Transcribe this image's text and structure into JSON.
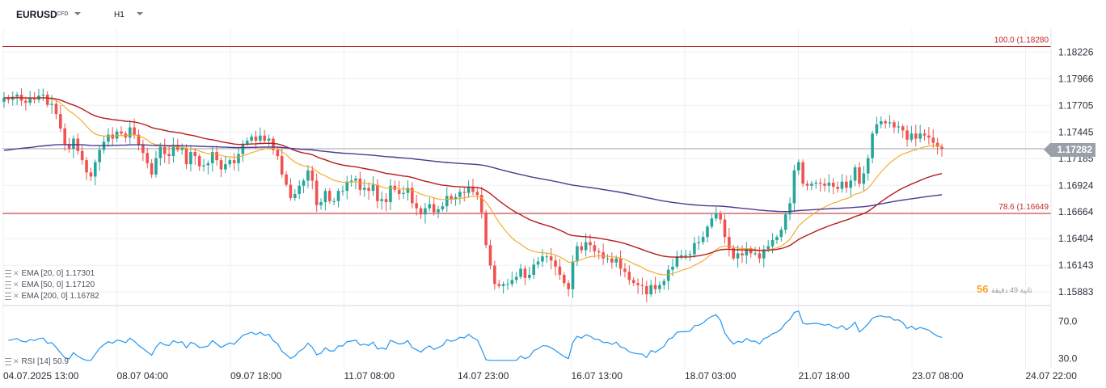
{
  "header": {
    "symbol": "EURUSD",
    "symbol_type": "CFD",
    "timeframe": "H1"
  },
  "indicators": {
    "ema20": "EMA [20, 0]  1.17301",
    "ema50": "EMA [50, 0]  1.17120",
    "ema200": "EMA [200, 0]  1.16782",
    "rsi": "RSI [14]  50.9"
  },
  "counter": {
    "first": "56",
    "label": "ثانية  49  دقيقة"
  },
  "colors": {
    "up": "#26a69a",
    "down": "#ef5350",
    "ema20": "#f5a623",
    "ema50": "#b71c1c",
    "ema200": "#4a3b8f",
    "rsi": "#2196f3",
    "fib": "#c62828",
    "current": "#9aa0aa"
  },
  "chart_data": {
    "type": "candlestick",
    "title": "EURUSD H1",
    "ylim": [
      1.1575,
      1.1845
    ],
    "y_ticks": [
      1.18226,
      1.17966,
      1.17705,
      1.17445,
      1.17185,
      1.16924,
      1.16664,
      1.16404,
      1.16143,
      1.15883
    ],
    "y_tick_labels": [
      "1.18226",
      "1.17966",
      "1.17705",
      "1.17445",
      "1.17185",
      "1.16924",
      "1.16664",
      "1.16404",
      "1.16143",
      "1.15883"
    ],
    "x_labels": [
      "04.07.2025  13:00",
      "08.07  04:00",
      "09.07  18:00",
      "11.07  08:00",
      "14.07  23:00",
      "16.07  13:00",
      "18.07  03:00",
      "21.07  18:00",
      "23.07  08:00",
      "24.07  22:00"
    ],
    "current_price": 1.17282,
    "current_price_label": "1.17282",
    "fib_levels": [
      {
        "label": "100.0 (1.18280",
        "value": 1.1828
      },
      {
        "label": "78.6 (1.16649",
        "value": 1.16649
      }
    ],
    "close": [
      1.1778,
      1.1776,
      1.1779,
      1.1781,
      1.1775,
      1.1773,
      1.1778,
      1.1776,
      1.178,
      1.1781,
      1.1771,
      1.1772,
      1.1762,
      1.1748,
      1.1732,
      1.1728,
      1.1738,
      1.1726,
      1.1717,
      1.1705,
      1.1701,
      1.1715,
      1.1727,
      1.1735,
      1.1742,
      1.1738,
      1.1745,
      1.1743,
      1.1739,
      1.1749,
      1.1742,
      1.1732,
      1.1724,
      1.1714,
      1.1703,
      1.1719,
      1.173,
      1.1723,
      1.1721,
      1.1732,
      1.1727,
      1.1729,
      1.1713,
      1.1725,
      1.1721,
      1.1711,
      1.1712,
      1.1714,
      1.1725,
      1.1717,
      1.1708,
      1.1713,
      1.1717,
      1.1714,
      1.1723,
      1.1733,
      1.1736,
      1.174,
      1.1736,
      1.1741,
      1.1736,
      1.1738,
      1.1727,
      1.1721,
      1.1703,
      1.1693,
      1.168,
      1.1684,
      1.1692,
      1.1697,
      1.1707,
      1.1697,
      1.1673,
      1.1676,
      1.1687,
      1.1677,
      1.1677,
      1.1687,
      1.1687,
      1.1696,
      1.1697,
      1.1699,
      1.1688,
      1.169,
      1.1687,
      1.1693,
      1.1677,
      1.1679,
      1.1676,
      1.1692,
      1.1688,
      1.1684,
      1.1685,
      1.169,
      1.1675,
      1.167,
      1.1664,
      1.167,
      1.1674,
      1.1666,
      1.1669,
      1.1672,
      1.1682,
      1.1679,
      1.1681,
      1.1686,
      1.1685,
      1.1691,
      1.1686,
      1.1683,
      1.1666,
      1.1634,
      1.1614,
      1.1596,
      1.1594,
      1.1596,
      1.1596,
      1.16,
      1.1603,
      1.1611,
      1.1602,
      1.1605,
      1.1615,
      1.1618,
      1.1623,
      1.1623,
      1.1619,
      1.1613,
      1.1605,
      1.1597,
      1.1591,
      1.1618,
      1.1633,
      1.1629,
      1.1637,
      1.1634,
      1.1628,
      1.1627,
      1.1621,
      1.1621,
      1.1617,
      1.1621,
      1.1611,
      1.1608,
      1.16,
      1.1597,
      1.1595,
      1.1594,
      1.1586,
      1.1595,
      1.1591,
      1.1595,
      1.1599,
      1.161,
      1.1613,
      1.1623,
      1.1624,
      1.1624,
      1.1625,
      1.1636,
      1.1637,
      1.1642,
      1.1652,
      1.166,
      1.1665,
      1.1659,
      1.1642,
      1.1631,
      1.1621,
      1.1626,
      1.1624,
      1.1631,
      1.1626,
      1.1626,
      1.1621,
      1.163,
      1.1633,
      1.1639,
      1.1642,
      1.1649,
      1.1664,
      1.1675,
      1.1707,
      1.1715,
      1.1694,
      1.1692,
      1.1694,
      1.1695,
      1.1694,
      1.1692,
      1.1695,
      1.1691,
      1.1689,
      1.1696,
      1.169,
      1.1697,
      1.171,
      1.1694,
      1.1704,
      1.1719,
      1.1743,
      1.1752,
      1.1755,
      1.1753,
      1.1754,
      1.1749,
      1.175,
      1.1746,
      1.1737,
      1.1743,
      1.1738,
      1.1743,
      1.1741,
      1.1739,
      1.1734,
      1.173,
      1.1728
    ]
  }
}
